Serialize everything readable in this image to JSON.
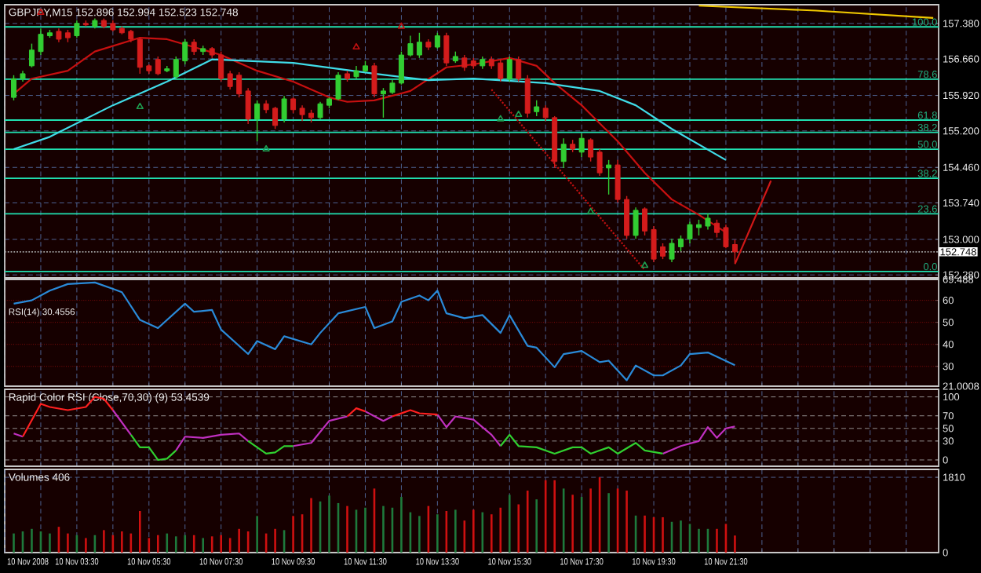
{
  "chart_data": [
    {
      "type": "candlestick",
      "title": "GBPJPY,M15  152.896 152.994 152.523 152.748",
      "x": [
        "2008-11-10T01:45",
        "2008-11-10T02:00",
        "2008-11-10T02:15",
        "2008-11-10T02:30",
        "2008-11-10T02:45",
        "2008-11-10T03:00",
        "2008-11-10T03:15",
        "2008-11-10T03:30",
        "2008-11-10T03:45",
        "2008-11-10T04:00",
        "2008-11-10T04:15",
        "2008-11-10T04:30",
        "2008-11-10T04:45",
        "2008-11-10T05:00",
        "2008-11-10T05:15",
        "2008-11-10T05:30",
        "2008-11-10T05:45",
        "2008-11-10T06:00",
        "2008-11-10T06:15",
        "2008-11-10T06:30",
        "2008-11-10T06:45",
        "2008-11-10T07:00",
        "2008-11-10T07:15",
        "2008-11-10T07:30",
        "2008-11-10T07:45",
        "2008-11-10T08:00",
        "2008-11-10T08:15",
        "2008-11-10T08:30",
        "2008-11-10T08:45",
        "2008-11-10T09:00",
        "2008-11-10T09:15",
        "2008-11-10T09:30",
        "2008-11-10T09:45",
        "2008-11-10T10:00",
        "2008-11-10T10:15",
        "2008-11-10T10:30",
        "2008-11-10T10:45",
        "2008-11-10T11:00",
        "2008-11-10T11:15",
        "2008-11-10T11:30",
        "2008-11-10T11:45",
        "2008-11-10T12:00",
        "2008-11-10T12:15",
        "2008-11-10T12:30",
        "2008-11-10T12:45",
        "2008-11-10T13:00",
        "2008-11-10T13:15",
        "2008-11-10T13:30",
        "2008-11-10T13:45",
        "2008-11-10T14:00",
        "2008-11-10T14:15",
        "2008-11-10T14:30",
        "2008-11-10T14:45",
        "2008-11-10T15:00",
        "2008-11-10T15:15",
        "2008-11-10T15:30",
        "2008-11-10T15:45",
        "2008-11-10T16:00",
        "2008-11-10T16:15",
        "2008-11-10T16:30",
        "2008-11-10T16:45",
        "2008-11-10T17:00",
        "2008-11-10T17:15",
        "2008-11-10T17:30",
        "2008-11-10T17:45",
        "2008-11-10T18:00",
        "2008-11-10T18:15",
        "2008-11-10T18:30",
        "2008-11-10T18:45",
        "2008-11-10T19:00",
        "2008-11-10T19:15",
        "2008-11-10T19:30",
        "2008-11-10T19:45",
        "2008-11-10T20:00",
        "2008-11-10T20:15",
        "2008-11-10T20:30",
        "2008-11-10T20:45",
        "2008-11-10T21:00",
        "2008-11-10T21:15",
        "2008-11-10T21:30",
        "2008-11-10T21:45"
      ],
      "ohlc": [
        [
          155.88,
          156.33,
          155.82,
          156.26
        ],
        [
          156.26,
          156.42,
          156.2,
          156.36
        ],
        [
          156.52,
          156.97,
          156.49,
          156.84
        ],
        [
          156.81,
          157.28,
          156.74,
          157.16
        ],
        [
          157.13,
          157.25,
          157.09,
          157.19
        ],
        [
          157.22,
          157.28,
          157.0,
          157.06
        ],
        [
          157.19,
          157.25,
          157.0,
          157.09
        ],
        [
          157.13,
          157.44,
          157.09,
          157.38
        ],
        [
          157.38,
          157.44,
          157.32,
          157.35
        ],
        [
          157.32,
          157.48,
          157.28,
          157.44
        ],
        [
          157.44,
          157.48,
          157.28,
          157.32
        ],
        [
          157.38,
          157.44,
          157.22,
          157.25
        ],
        [
          157.28,
          157.32,
          157.16,
          157.19
        ],
        [
          157.22,
          157.25,
          157.0,
          157.06
        ],
        [
          157.06,
          157.09,
          156.36,
          156.49
        ],
        [
          156.52,
          156.55,
          156.36,
          156.42
        ],
        [
          156.65,
          156.71,
          156.33,
          156.36
        ],
        [
          156.42,
          156.52,
          156.39,
          156.46
        ],
        [
          156.3,
          156.71,
          156.26,
          156.65
        ],
        [
          156.62,
          157.06,
          156.55,
          157.0
        ],
        [
          157.0,
          157.06,
          156.74,
          156.81
        ],
        [
          156.81,
          156.93,
          156.74,
          156.87
        ],
        [
          156.87,
          156.9,
          156.68,
          156.74
        ],
        [
          156.74,
          156.81,
          156.2,
          156.26
        ],
        [
          156.36,
          156.42,
          156.04,
          156.1
        ],
        [
          156.33,
          156.39,
          155.88,
          155.95
        ],
        [
          156.01,
          156.07,
          155.34,
          155.44
        ],
        [
          155.44,
          155.82,
          154.99,
          155.75
        ],
        [
          155.75,
          155.82,
          155.56,
          155.63
        ],
        [
          155.66,
          155.69,
          155.24,
          155.31
        ],
        [
          155.44,
          155.91,
          155.37,
          155.85
        ],
        [
          155.85,
          155.88,
          155.56,
          155.63
        ],
        [
          155.66,
          155.72,
          155.4,
          155.53
        ],
        [
          155.56,
          155.63,
          155.37,
          155.47
        ],
        [
          155.47,
          155.79,
          155.44,
          155.75
        ],
        [
          155.72,
          155.88,
          155.66,
          155.85
        ],
        [
          155.85,
          156.39,
          155.82,
          156.33
        ],
        [
          156.36,
          156.42,
          156.2,
          156.26
        ],
        [
          156.3,
          156.52,
          156.26,
          156.42
        ],
        [
          156.42,
          156.62,
          156.39,
          156.52
        ],
        [
          156.52,
          156.58,
          155.88,
          155.95
        ],
        [
          155.95,
          156.07,
          155.47,
          156.01
        ],
        [
          155.98,
          156.23,
          155.95,
          156.17
        ],
        [
          156.17,
          156.81,
          156.14,
          156.74
        ],
        [
          156.74,
          157.13,
          156.71,
          156.97
        ],
        [
          156.74,
          157.19,
          156.68,
          157.0
        ],
        [
          157.0,
          157.06,
          156.84,
          156.9
        ],
        [
          156.9,
          157.19,
          156.87,
          157.13
        ],
        [
          157.13,
          157.19,
          156.52,
          156.58
        ],
        [
          156.62,
          156.81,
          156.58,
          156.71
        ],
        [
          156.68,
          156.74,
          156.42,
          156.49
        ],
        [
          156.62,
          156.68,
          156.46,
          156.52
        ],
        [
          156.52,
          156.71,
          156.46,
          156.65
        ],
        [
          156.65,
          156.71,
          156.46,
          156.52
        ],
        [
          156.58,
          156.65,
          156.2,
          156.26
        ],
        [
          156.26,
          156.71,
          156.2,
          156.65
        ],
        [
          156.65,
          156.71,
          156.2,
          156.26
        ],
        [
          156.26,
          156.33,
          155.47,
          155.56
        ],
        [
          155.59,
          155.82,
          155.5,
          155.69
        ],
        [
          155.66,
          155.72,
          155.4,
          155.47
        ],
        [
          155.47,
          155.5,
          154.45,
          154.58
        ],
        [
          154.58,
          155.05,
          154.45,
          154.93
        ],
        [
          154.93,
          155.02,
          154.77,
          154.83
        ],
        [
          154.77,
          155.15,
          154.67,
          155.05
        ],
        [
          155.02,
          155.05,
          154.58,
          154.67
        ],
        [
          154.77,
          154.83,
          154.29,
          154.35
        ],
        [
          154.45,
          154.61,
          153.91,
          154.51
        ],
        [
          154.51,
          154.61,
          153.75,
          153.81
        ],
        [
          153.81,
          153.88,
          153.01,
          153.08
        ],
        [
          153.08,
          153.65,
          153.01,
          153.59
        ],
        [
          153.62,
          153.65,
          153.08,
          153.17
        ],
        [
          153.2,
          153.27,
          152.54,
          152.6
        ],
        [
          152.85,
          152.92,
          152.6,
          152.66
        ],
        [
          152.6,
          153.01,
          152.54,
          152.92
        ],
        [
          152.85,
          153.08,
          152.76,
          153.01
        ],
        [
          153.01,
          153.36,
          152.92,
          153.3
        ],
        [
          153.24,
          153.4,
          153.08,
          153.3
        ],
        [
          153.27,
          153.52,
          153.2,
          153.43
        ],
        [
          153.33,
          153.4,
          153.04,
          153.14
        ],
        [
          153.24,
          153.3,
          152.82,
          152.85
        ],
        [
          152.896,
          152.994,
          152.523,
          152.748
        ]
      ],
      "colors": [
        "#32cd32",
        "#32cd32",
        "#32cd32",
        "#32cd32",
        "#32cd32",
        "#d41c1c",
        "#d41c1c",
        "#32cd32",
        "#d41c1c",
        "#32cd32",
        "#d41c1c",
        "#d41c1c",
        "#d41c1c",
        "#d41c1c",
        "#d41c1c",
        "#d41c1c",
        "#d41c1c",
        "#32cd32",
        "#32cd32",
        "#32cd32",
        "#d41c1c",
        "#32cd32",
        "#d41c1c",
        "#d41c1c",
        "#d41c1c",
        "#d41c1c",
        "#d41c1c",
        "#32cd32",
        "#d41c1c",
        "#d41c1c",
        "#32cd32",
        "#d41c1c",
        "#d41c1c",
        "#d41c1c",
        "#32cd32",
        "#32cd32",
        "#32cd32",
        "#d41c1c",
        "#32cd32",
        "#32cd32",
        "#d41c1c",
        "#32cd32",
        "#32cd32",
        "#32cd32",
        "#32cd32",
        "#32cd32",
        "#d41c1c",
        "#32cd32",
        "#d41c1c",
        "#32cd32",
        "#d41c1c",
        "#d41c1c",
        "#32cd32",
        "#d41c1c",
        "#d41c1c",
        "#32cd32",
        "#d41c1c",
        "#d41c1c",
        "#32cd32",
        "#d41c1c",
        "#d41c1c",
        "#32cd32",
        "#d41c1c",
        "#32cd32",
        "#d41c1c",
        "#d41c1c",
        "#32cd32",
        "#d41c1c",
        "#d41c1c",
        "#32cd32",
        "#d41c1c",
        "#d41c1c",
        "#d41c1c",
        "#32cd32",
        "#32cd32",
        "#32cd32",
        "#32cd32",
        "#32cd32",
        "#d41c1c",
        "#d41c1c",
        "#d41c1c"
      ],
      "series": [
        {
          "type": "line",
          "color": "#c81010",
          "x": [
            "2008-11-10T01:45",
            "2008-11-10T02:15",
            "2008-11-10T03:15",
            "2008-11-10T04:00",
            "2008-11-10T05:15",
            "2008-11-10T06:00",
            "2008-11-10T06:45",
            "2008-11-10T07:30",
            "2008-11-10T08:30",
            "2008-11-10T09:30",
            "2008-11-10T10:30",
            "2008-11-10T11:00",
            "2008-11-10T11:45",
            "2008-11-10T12:45",
            "2008-11-10T13:45",
            "2008-11-10T14:30",
            "2008-11-10T15:30",
            "2008-11-10T16:15",
            "2008-11-10T16:45",
            "2008-11-10T17:30",
            "2008-11-10T18:30",
            "2008-11-10T19:15",
            "2008-11-10T20:00",
            "2008-11-10T20:45",
            "2008-11-10T21:30"
          ],
          "values": [
            155.95,
            156.26,
            156.42,
            156.81,
            157.09,
            157.06,
            156.9,
            156.74,
            156.42,
            156.2,
            155.88,
            155.79,
            155.82,
            156.01,
            156.49,
            156.55,
            156.68,
            156.52,
            156.17,
            155.72,
            154.99,
            154.35,
            153.81,
            153.5,
            153.14
          ]
        },
        {
          "type": "line",
          "color": "#40dce8",
          "x": [
            "2008-11-10T01:45",
            "2008-11-10T02:45",
            "2008-11-10T04:30",
            "2008-11-10T06:00",
            "2008-11-10T07:15",
            "2008-11-10T09:30",
            "2008-11-10T11:45",
            "2008-11-10T13:15",
            "2008-11-10T14:30",
            "2008-11-10T16:30",
            "2008-11-10T18:00",
            "2008-11-10T19:00",
            "2008-11-10T20:00",
            "2008-11-10T21:30"
          ],
          "values": [
            154.83,
            155.08,
            155.72,
            156.2,
            156.65,
            156.58,
            156.36,
            156.23,
            156.26,
            156.17,
            156.01,
            155.72,
            155.24,
            154.61
          ]
        },
        {
          "type": "line",
          "color": "#f0c800",
          "x": [
            "2008-11-10T20:45",
            "2008-11-11T00:00",
            "2008-11-11T03:15"
          ],
          "values": [
            157.74,
            157.64,
            157.49
          ]
        },
        {
          "type": "line",
          "color": "#d01818",
          "x": [
            "2008-11-10T21:45",
            "2008-11-10T22:45"
          ],
          "values": [
            152.5,
            154.19
          ]
        },
        {
          "type": "line",
          "color": "#c01010",
          "line_style": "dotted",
          "x": [
            "2008-11-10T15:00",
            "2008-11-10T19:15"
          ],
          "values": [
            156.04,
            152.38
          ]
        },
        {
          "type": "scatter",
          "color": "#1e9e50",
          "marker": "triangle",
          "x": [
            "2008-11-10T05:15",
            "2008-11-10T08:45",
            "2008-11-10T15:15",
            "2008-11-10T15:45",
            "2008-11-10T17:45",
            "2008-11-10T19:15"
          ],
          "values": [
            155.69,
            154.83,
            155.44,
            155.53,
            153.56,
            152.47
          ]
        },
        {
          "type": "scatter",
          "color": "#c01010",
          "marker": "triangle",
          "x": [
            "2008-11-10T02:30",
            "2008-11-10T11:15",
            "2008-11-10T12:30"
          ],
          "values": [
            157.6,
            156.9,
            157.32
          ]
        }
      ],
      "ref_lines": [
        {
          "axis": "y",
          "value": 157.31,
          "color": "#20e0b0"
        },
        {
          "axis": "y",
          "value": 156.25,
          "color": "#20e0b0"
        },
        {
          "axis": "y",
          "value": 155.42,
          "color": "#20e0b0"
        },
        {
          "axis": "y",
          "value": 155.17,
          "color": "#20e0b0"
        },
        {
          "axis": "y",
          "value": 154.83,
          "color": "#20e0b0"
        },
        {
          "axis": "y",
          "value": 154.24,
          "color": "#20e0b0"
        },
        {
          "axis": "y",
          "value": 153.52,
          "color": "#20e0b0"
        },
        {
          "axis": "y",
          "value": 152.35,
          "color": "#20e0b0"
        },
        {
          "axis": "y",
          "value": 152.748,
          "label": "152.748",
          "color": "#a0a0a0",
          "line_style": "dotted"
        }
      ],
      "annotations": [
        "100.0",
        "78.6",
        "61.8",
        "38.2",
        "50.0",
        "38.2",
        "23.6",
        "0.0"
      ],
      "xlim": [
        "2008-11-10T01:30",
        "2008-11-11T03:24"
      ],
      "ylim": [
        152.22,
        157.76
      ],
      "xticks": [
        {
          "value": "2008-11-10T01:30",
          "label": null
        },
        {
          "value": "2008-11-10T02:30",
          "label": null
        },
        {
          "value": "2008-11-10T03:30",
          "label": null
        },
        {
          "value": "2008-11-10T04:30",
          "label": null
        },
        {
          "value": "2008-11-10T05:30",
          "label": null
        },
        {
          "value": "2008-11-10T06:30",
          "label": null
        },
        {
          "value": "2008-11-10T07:30",
          "label": null
        },
        {
          "value": "2008-11-10T08:30",
          "label": null
        },
        {
          "value": "2008-11-10T09:30",
          "label": null
        },
        {
          "value": "2008-11-10T10:30",
          "label": null
        },
        {
          "value": "2008-11-10T11:30",
          "label": null
        },
        {
          "value": "2008-11-10T12:30",
          "label": null
        },
        {
          "value": "2008-11-10T13:30",
          "label": null
        },
        {
          "value": "2008-11-10T14:30",
          "label": null
        },
        {
          "value": "2008-11-10T15:30",
          "label": null
        },
        {
          "value": "2008-11-10T16:30",
          "label": null
        },
        {
          "value": "2008-11-10T17:30",
          "label": null
        },
        {
          "value": "2008-11-10T18:30",
          "label": null
        },
        {
          "value": "2008-11-10T19:30",
          "label": null
        },
        {
          "value": "2008-11-10T20:30",
          "label": null
        },
        {
          "value": "2008-11-10T21:30",
          "label": null
        },
        {
          "value": "2008-11-10T22:30",
          "label": null
        },
        {
          "value": "2008-11-10T23:30",
          "label": null
        },
        {
          "value": "2008-11-11T00:30",
          "label": null
        },
        {
          "value": "2008-11-11T01:30",
          "label": null
        },
        {
          "value": "2008-11-11T02:30",
          "label": null
        }
      ],
      "yticks": [
        {
          "value": 152.28,
          "label": "152.280"
        },
        {
          "value": 153.0,
          "label": "153.000"
        },
        {
          "value": 153.74,
          "label": "153.740"
        },
        {
          "value": 154.46,
          "label": "154.460"
        },
        {
          "value": 155.2,
          "label": "155.200"
        },
        {
          "value": 155.92,
          "label": "155.920"
        },
        {
          "value": 156.66,
          "label": "156.660"
        },
        {
          "value": 157.38,
          "label": "157.380"
        }
      ],
      "grid": true,
      "tick_labels": "y"
    },
    {
      "type": "line",
      "title": "RSI(14) 30.4556",
      "series": [
        {
          "color": "#2a8ad8",
          "x": [
            "2008-11-10T01:45",
            "2008-11-10T02:15",
            "2008-11-10T02:45",
            "2008-11-10T03:15",
            "2008-11-10T04:00",
            "2008-11-10T04:30",
            "2008-11-10T04:45",
            "2008-11-10T05:15",
            "2008-11-10T05:45",
            "2008-11-10T06:30",
            "2008-11-10T06:45",
            "2008-11-10T07:15",
            "2008-11-10T07:30",
            "2008-11-10T08:15",
            "2008-11-10T08:30",
            "2008-11-10T09:00",
            "2008-11-10T09:15",
            "2008-11-10T10:00",
            "2008-11-10T10:15",
            "2008-11-10T10:45",
            "2008-11-10T11:30",
            "2008-11-10T11:45",
            "2008-11-10T12:15",
            "2008-11-10T12:30",
            "2008-11-10T13:00",
            "2008-11-10T13:15",
            "2008-11-10T13:30",
            "2008-11-10T13:45",
            "2008-11-10T14:15",
            "2008-11-10T14:45",
            "2008-11-10T15:15",
            "2008-11-10T15:30",
            "2008-11-10T16:00",
            "2008-11-10T16:15",
            "2008-11-10T16:45",
            "2008-11-10T17:00",
            "2008-11-10T17:30",
            "2008-11-10T18:00",
            "2008-11-10T18:15",
            "2008-11-10T18:45",
            "2008-11-10T19:00",
            "2008-11-10T19:30",
            "2008-11-10T19:45",
            "2008-11-10T20:15",
            "2008-11-10T20:30",
            "2008-11-10T21:00",
            "2008-11-10T21:45"
          ],
          "values": [
            58.5,
            60,
            64.4,
            67.4,
            68.1,
            65.2,
            63.7,
            51.1,
            47.4,
            58.5,
            54.8,
            55.6,
            46.7,
            35.6,
            41.5,
            37.8,
            43.7,
            40,
            45.2,
            54.1,
            57,
            47.4,
            50.4,
            59.3,
            62.2,
            60,
            64.4,
            54.1,
            51.9,
            53.3,
            45.2,
            53.3,
            39.3,
            38.5,
            29.6,
            35.6,
            37,
            31.9,
            32.6,
            23.7,
            30.4,
            25.9,
            25.9,
            30.4,
            35.6,
            36.3,
            30.5
          ]
        }
      ],
      "xlim": [
        "2008-11-10T01:30",
        "2008-11-11T03:24"
      ],
      "ylim": [
        21.0008,
        69.488
      ],
      "xticks": [
        {
          "value": "2008-11-10T01:30",
          "label": null
        },
        {
          "value": "2008-11-10T02:30",
          "label": null
        },
        {
          "value": "2008-11-10T03:30",
          "label": null
        },
        {
          "value": "2008-11-10T04:30",
          "label": null
        },
        {
          "value": "2008-11-10T05:30",
          "label": null
        },
        {
          "value": "2008-11-10T06:30",
          "label": null
        },
        {
          "value": "2008-11-10T07:30",
          "label": null
        },
        {
          "value": "2008-11-10T08:30",
          "label": null
        },
        {
          "value": "2008-11-10T09:30",
          "label": null
        },
        {
          "value": "2008-11-10T10:30",
          "label": null
        },
        {
          "value": "2008-11-10T11:30",
          "label": null
        },
        {
          "value": "2008-11-10T12:30",
          "label": null
        },
        {
          "value": "2008-11-10T13:30",
          "label": null
        },
        {
          "value": "2008-11-10T14:30",
          "label": null
        },
        {
          "value": "2008-11-10T15:30",
          "label": null
        },
        {
          "value": "2008-11-10T16:30",
          "label": null
        },
        {
          "value": "2008-11-10T17:30",
          "label": null
        },
        {
          "value": "2008-11-10T18:30",
          "label": null
        },
        {
          "value": "2008-11-10T19:30",
          "label": null
        },
        {
          "value": "2008-11-10T20:30",
          "label": null
        },
        {
          "value": "2008-11-10T21:30",
          "label": null
        },
        {
          "value": "2008-11-10T22:30",
          "label": null
        },
        {
          "value": "2008-11-10T23:30",
          "label": null
        },
        {
          "value": "2008-11-11T00:30",
          "label": null
        },
        {
          "value": "2008-11-11T01:30",
          "label": null
        },
        {
          "value": "2008-11-11T02:30",
          "label": null
        }
      ],
      "yticks": [
        {
          "value": 69.488,
          "label": "69.488"
        },
        60,
        50,
        40,
        30,
        {
          "value": 21.0008,
          "label": "21.0008"
        }
      ],
      "grid": true,
      "tick_labels": "y"
    },
    {
      "type": "line",
      "title": "Rapid Color RSI (Close,70,30) (9) 53.4539",
      "series": [
        {
          "color": "#c030c0",
          "x": [
            "2008-11-10T01:45",
            "2008-11-10T02:00",
            "2008-11-10T02:15",
            "2008-11-10T04:30",
            "2008-11-10T05:00",
            "2008-11-10T05:06",
            "2008-11-10T06:15",
            "2008-11-10T06:30",
            "2008-11-10T07:00",
            "2008-11-10T07:30",
            "2008-11-10T08:00",
            "2008-11-10T08:15",
            "2008-11-10T08:30",
            "2008-11-10T09:30",
            "2008-11-10T10:00",
            "2008-11-10T10:30",
            "2008-11-10T11:00",
            "2008-11-10T11:06",
            "2008-11-10T11:30",
            "2008-11-10T12:00",
            "2008-11-10T12:15",
            "2008-11-10T12:30",
            "2008-11-10T13:30",
            "2008-11-10T13:45",
            "2008-11-10T14:00",
            "2008-11-10T14:30",
            "2008-11-10T15:00",
            "2008-11-10T15:15",
            "2008-11-10T15:18",
            "2008-11-10T19:45",
            "2008-11-10T20:15",
            "2008-11-10T20:45",
            "2008-11-10T21:00",
            "2008-11-10T21:15",
            "2008-11-10T21:30",
            "2008-11-10T21:45"
          ],
          "values": [
            42,
            37,
            null,
            79,
            40,
            null,
            15,
            37,
            35,
            40,
            42,
            30,
            null,
            22,
            27,
            62,
            69,
            null,
            77,
            62,
            69,
            null,
            72,
            52,
            69,
            64,
            40,
            22,
            null,
            10,
            22,
            30,
            52,
            35,
            50,
            53
          ]
        },
        {
          "color": "#ff2020",
          "x": [
            "2008-11-10T02:00",
            "2008-11-10T02:30",
            "2008-11-10T02:45",
            "2008-11-10T03:15",
            "2008-11-10T03:45",
            "2008-11-10T04:00",
            "2008-11-10T04:15",
            "2008-11-10T04:30",
            "2008-11-10T04:36",
            "2008-11-10T11:00",
            "2008-11-10T11:15",
            "2008-11-10T11:30",
            "2008-11-10T11:36",
            "2008-11-10T12:15",
            "2008-11-10T12:45",
            "2008-11-10T13:00",
            "2008-11-10T13:30"
          ],
          "values": [
            37,
            89,
            84,
            79,
            84,
            100,
            97,
            79,
            null,
            69,
            82,
            77,
            null,
            69,
            79,
            74,
            72
          ]
        },
        {
          "color": "#30d030",
          "x": [
            "2008-11-10T05:00",
            "2008-11-10T05:15",
            "2008-11-10T05:30",
            "2008-11-10T05:45",
            "2008-11-10T06:00",
            "2008-11-10T06:15",
            "2008-11-10T06:18",
            "2008-11-10T08:15",
            "2008-11-10T08:45",
            "2008-11-10T09:00",
            "2008-11-10T09:15",
            "2008-11-10T09:30",
            "2008-11-10T09:36",
            "2008-11-10T15:15",
            "2008-11-10T15:30",
            "2008-11-10T15:45",
            "2008-11-10T16:15",
            "2008-11-10T16:45",
            "2008-11-10T17:15",
            "2008-11-10T17:30",
            "2008-11-10T17:45",
            "2008-11-10T18:15",
            "2008-11-10T18:30",
            "2008-11-10T19:00",
            "2008-11-10T19:15",
            "2008-11-10T19:45"
          ],
          "values": [
            40,
            20,
            20,
            0,
            2,
            15,
            null,
            30,
            10,
            12,
            22,
            22,
            null,
            22,
            40,
            22,
            20,
            10,
            20,
            20,
            10,
            20,
            10,
            27,
            15,
            10
          ]
        }
      ],
      "xlim": [
        "2008-11-10T01:30",
        "2008-11-11T03:24"
      ],
      "ylim": [
        -10,
        112
      ],
      "xticks": [
        {
          "value": "2008-11-10T01:30",
          "label": null
        },
        {
          "value": "2008-11-10T02:30",
          "label": null
        },
        {
          "value": "2008-11-10T03:30",
          "label": null
        },
        {
          "value": "2008-11-10T04:30",
          "label": null
        },
        {
          "value": "2008-11-10T05:30",
          "label": null
        },
        {
          "value": "2008-11-10T06:30",
          "label": null
        },
        {
          "value": "2008-11-10T07:30",
          "label": null
        },
        {
          "value": "2008-11-10T08:30",
          "label": null
        },
        {
          "value": "2008-11-10T09:30",
          "label": null
        },
        {
          "value": "2008-11-10T10:30",
          "label": null
        },
        {
          "value": "2008-11-10T11:30",
          "label": null
        },
        {
          "value": "2008-11-10T12:30",
          "label": null
        },
        {
          "value": "2008-11-10T13:30",
          "label": null
        },
        {
          "value": "2008-11-10T14:30",
          "label": null
        },
        {
          "value": "2008-11-10T15:30",
          "label": null
        },
        {
          "value": "2008-11-10T16:30",
          "label": null
        },
        {
          "value": "2008-11-10T17:30",
          "label": null
        },
        {
          "value": "2008-11-10T18:30",
          "label": null
        },
        {
          "value": "2008-11-10T19:30",
          "label": null
        },
        {
          "value": "2008-11-10T20:30",
          "label": null
        },
        {
          "value": "2008-11-10T21:30",
          "label": null
        },
        {
          "value": "2008-11-10T22:30",
          "label": null
        },
        {
          "value": "2008-11-10T23:30",
          "label": null
        },
        {
          "value": "2008-11-11T00:30",
          "label": null
        },
        {
          "value": "2008-11-11T01:30",
          "label": null
        },
        {
          "value": "2008-11-11T02:30",
          "label": null
        }
      ],
      "yticks": [
        100,
        70,
        50,
        30,
        0
      ],
      "grid": true,
      "tick_labels": "y"
    },
    {
      "type": "bar",
      "title": "Volumes 406",
      "x": [
        "2008-11-10T01:45",
        "2008-11-10T02:00",
        "2008-11-10T02:15",
        "2008-11-10T02:30",
        "2008-11-10T02:45",
        "2008-11-10T03:00",
        "2008-11-10T03:15",
        "2008-11-10T03:30",
        "2008-11-10T03:45",
        "2008-11-10T04:00",
        "2008-11-10T04:15",
        "2008-11-10T04:30",
        "2008-11-10T04:45",
        "2008-11-10T05:00",
        "2008-11-10T05:15",
        "2008-11-10T05:30",
        "2008-11-10T05:45",
        "2008-11-10T06:00",
        "2008-11-10T06:15",
        "2008-11-10T06:30",
        "2008-11-10T06:45",
        "2008-11-10T07:00",
        "2008-11-10T07:15",
        "2008-11-10T07:30",
        "2008-11-10T07:45",
        "2008-11-10T08:00",
        "2008-11-10T08:15",
        "2008-11-10T08:30",
        "2008-11-10T08:45",
        "2008-11-10T09:00",
        "2008-11-10T09:15",
        "2008-11-10T09:30",
        "2008-11-10T09:45",
        "2008-11-10T10:00",
        "2008-11-10T10:15",
        "2008-11-10T10:30",
        "2008-11-10T10:45",
        "2008-11-10T11:00",
        "2008-11-10T11:15",
        "2008-11-10T11:30",
        "2008-11-10T11:45",
        "2008-11-10T12:00",
        "2008-11-10T12:15",
        "2008-11-10T12:30",
        "2008-11-10T12:45",
        "2008-11-10T13:00",
        "2008-11-10T13:15",
        "2008-11-10T13:30",
        "2008-11-10T13:45",
        "2008-11-10T14:00",
        "2008-11-10T14:15",
        "2008-11-10T14:30",
        "2008-11-10T14:45",
        "2008-11-10T15:00",
        "2008-11-10T15:15",
        "2008-11-10T15:30",
        "2008-11-10T15:45",
        "2008-11-10T16:00",
        "2008-11-10T16:15",
        "2008-11-10T16:30",
        "2008-11-10T16:45",
        "2008-11-10T17:00",
        "2008-11-10T17:15",
        "2008-11-10T17:30",
        "2008-11-10T17:45",
        "2008-11-10T18:00",
        "2008-11-10T18:15",
        "2008-11-10T18:30",
        "2008-11-10T18:45",
        "2008-11-10T19:00",
        "2008-11-10T19:15",
        "2008-11-10T19:30",
        "2008-11-10T19:45",
        "2008-11-10T20:00",
        "2008-11-10T20:15",
        "2008-11-10T20:30",
        "2008-11-10T20:45",
        "2008-11-10T21:00",
        "2008-11-10T21:15",
        "2008-11-10T21:30",
        "2008-11-10T21:45"
      ],
      "values": [
        460,
        510,
        570,
        510,
        460,
        620,
        460,
        420,
        350,
        420,
        540,
        420,
        510,
        460,
        1000,
        350,
        420,
        460,
        390,
        420,
        420,
        350,
        390,
        420,
        350,
        570,
        510,
        880,
        460,
        570,
        540,
        880,
        920,
        1310,
        1230,
        1370,
        1190,
        1120,
        1030,
        1080,
        1540,
        1120,
        1080,
        1340,
        970,
        880,
        1120,
        920,
        1000,
        1030,
        770,
        1030,
        970,
        920,
        1080,
        1390,
        1160,
        1490,
        1280,
        1740,
        1740,
        1540,
        1390,
        1340,
        1540,
        1810,
        1430,
        1540,
        1490,
        890,
        890,
        850,
        850,
        740,
        770,
        690,
        570,
        570,
        570,
        690,
        410
      ],
      "colors": [
        "#1e7a3c",
        "#1e7a3c",
        "#1e7a3c",
        "#1e7a3c",
        "#1e7a3c",
        "#d01010",
        "#d01010",
        "#1e7a3c",
        "#d01010",
        "#1e7a3c",
        "#d01010",
        "#d01010",
        "#d01010",
        "#d01010",
        "#d01010",
        "#d01010",
        "#d01010",
        "#1e7a3c",
        "#1e7a3c",
        "#1e7a3c",
        "#d01010",
        "#1e7a3c",
        "#d01010",
        "#d01010",
        "#d01010",
        "#d01010",
        "#d01010",
        "#1e7a3c",
        "#d01010",
        "#d01010",
        "#1e7a3c",
        "#d01010",
        "#d01010",
        "#d01010",
        "#1e7a3c",
        "#1e7a3c",
        "#1e7a3c",
        "#d01010",
        "#1e7a3c",
        "#1e7a3c",
        "#d01010",
        "#1e7a3c",
        "#1e7a3c",
        "#1e7a3c",
        "#1e7a3c",
        "#1e7a3c",
        "#d01010",
        "#1e7a3c",
        "#d01010",
        "#1e7a3c",
        "#d01010",
        "#d01010",
        "#1e7a3c",
        "#d01010",
        "#d01010",
        "#1e7a3c",
        "#d01010",
        "#d01010",
        "#1e7a3c",
        "#d01010",
        "#d01010",
        "#1e7a3c",
        "#d01010",
        "#1e7a3c",
        "#d01010",
        "#d01010",
        "#1e7a3c",
        "#d01010",
        "#d01010",
        "#1e7a3c",
        "#d01010",
        "#d01010",
        "#d01010",
        "#1e7a3c",
        "#1e7a3c",
        "#1e7a3c",
        "#1e7a3c",
        "#1e7a3c",
        "#d01010",
        "#d01010",
        "#d01010"
      ],
      "xlim": [
        "2008-11-10T01:30",
        "2008-11-11T03:24"
      ],
      "ylim": [
        0,
        2000
      ],
      "xticks": [
        {
          "value": "2008-11-10T01:30",
          "label": "10 Nov 2008"
        },
        {
          "value": "2008-11-10T02:30",
          "label": null
        },
        {
          "value": "2008-11-10T03:30",
          "label": "10 Nov 03:30"
        },
        {
          "value": "2008-11-10T04:30",
          "label": null
        },
        {
          "value": "2008-11-10T05:30",
          "label": "10 Nov 05:30"
        },
        {
          "value": "2008-11-10T06:30",
          "label": null
        },
        {
          "value": "2008-11-10T07:30",
          "label": "10 Nov 07:30"
        },
        {
          "value": "2008-11-10T08:30",
          "label": null
        },
        {
          "value": "2008-11-10T09:30",
          "label": "10 Nov 09:30"
        },
        {
          "value": "2008-11-10T10:30",
          "label": null
        },
        {
          "value": "2008-11-10T11:30",
          "label": "10 Nov 11:30"
        },
        {
          "value": "2008-11-10T12:30",
          "label": null
        },
        {
          "value": "2008-11-10T13:30",
          "label": "10 Nov 13:30"
        },
        {
          "value": "2008-11-10T14:30",
          "label": null
        },
        {
          "value": "2008-11-10T15:30",
          "label": "10 Nov 15:30"
        },
        {
          "value": "2008-11-10T16:30",
          "label": null
        },
        {
          "value": "2008-11-10T17:30",
          "label": "10 Nov 17:30"
        },
        {
          "value": "2008-11-10T18:30",
          "label": null
        },
        {
          "value": "2008-11-10T19:30",
          "label": "10 Nov 19:30"
        },
        {
          "value": "2008-11-10T20:30",
          "label": null
        },
        {
          "value": "2008-11-10T21:30",
          "label": "10 Nov 21:30"
        },
        {
          "value": "2008-11-10T22:30",
          "label": null
        },
        {
          "value": "2008-11-10T23:30",
          "label": null
        },
        {
          "value": "2008-11-11T00:30",
          "label": null
        },
        {
          "value": "2008-11-11T01:30",
          "label": null
        },
        {
          "value": "2008-11-11T02:30",
          "label": null
        }
      ],
      "yticks": [
        1810,
        0
      ],
      "grid": true
    }
  ]
}
